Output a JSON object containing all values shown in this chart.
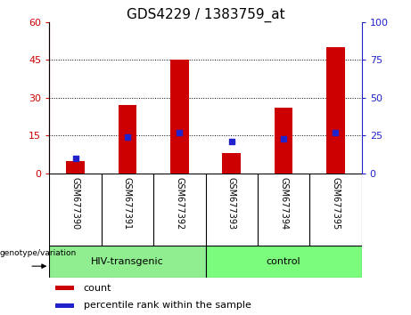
{
  "title": "GDS4229 / 1383759_at",
  "samples": [
    "GSM677390",
    "GSM677391",
    "GSM677392",
    "GSM677393",
    "GSM677394",
    "GSM677395"
  ],
  "count_values": [
    5,
    27,
    45,
    8,
    26,
    50
  ],
  "percentile_values": [
    10,
    24,
    27,
    21,
    23,
    27
  ],
  "ylim_left": [
    0,
    60
  ],
  "ylim_right": [
    0,
    100
  ],
  "yticks_left": [
    0,
    15,
    30,
    45,
    60
  ],
  "yticks_right": [
    0,
    25,
    50,
    75,
    100
  ],
  "bar_color": "#cc0000",
  "dot_color": "#2222cc",
  "group1_label": "HIV-transgenic",
  "group2_label": "control",
  "group1_color": "#90ee90",
  "group2_color": "#7cfc7c",
  "xlabel_bg_color": "#c8c8c8",
  "legend_count_label": "count",
  "legend_pct_label": "percentile rank within the sample",
  "genotype_label": "genotype/variation",
  "bar_width": 0.35,
  "dot_size": 18,
  "title_fontsize": 11,
  "tick_fontsize": 8,
  "label_fontsize": 8,
  "left_axis_color": "#cc0000",
  "right_axis_color": "#2222cc",
  "bg_color": "#ffffff"
}
